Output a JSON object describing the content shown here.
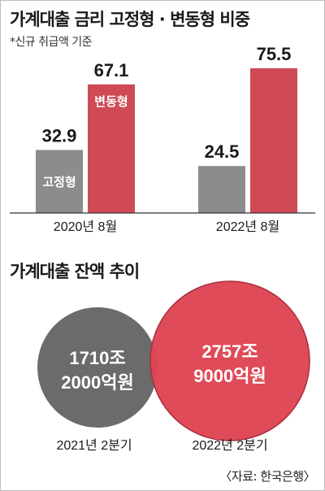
{
  "header": {
    "title": "가계대출 금리 고정형 · 변동형 비중",
    "note": "*신규 취급액 기준"
  },
  "section2": {
    "title": "가계대출 잔액 추이"
  },
  "source": "〈자료: 한국은행〉",
  "colors": {
    "fixed": "#8c8c8c",
    "variable": "#d04a55",
    "bubble_gray": "#6b6b6b",
    "bubble_red": "#de4553",
    "bubble_red_outline": "#a83040",
    "axis": "#333333"
  },
  "chart_data": [
    {
      "type": "bar",
      "title": "가계대출 금리 고정형 · 변동형 비중",
      "note": "*신규 취급액 기준",
      "categories": [
        "2020년 8월",
        "2022년 8월"
      ],
      "series": [
        {
          "name": "고정형",
          "values": [
            32.9,
            24.5
          ]
        },
        {
          "name": "변동형",
          "values": [
            67.1,
            75.5
          ]
        }
      ],
      "value_labels": [
        [
          "32.9",
          "24.5"
        ],
        [
          "67.1",
          "75.5"
        ]
      ],
      "legend": "inside-bars"
    },
    {
      "type": "bubble",
      "title": "가계대출 잔액 추이",
      "categories": [
        "2021년 2분기",
        "2022년 2분기"
      ],
      "values_text": [
        [
          "1710조",
          "2000억원"
        ],
        [
          "2757조",
          "9000억원"
        ]
      ]
    }
  ]
}
